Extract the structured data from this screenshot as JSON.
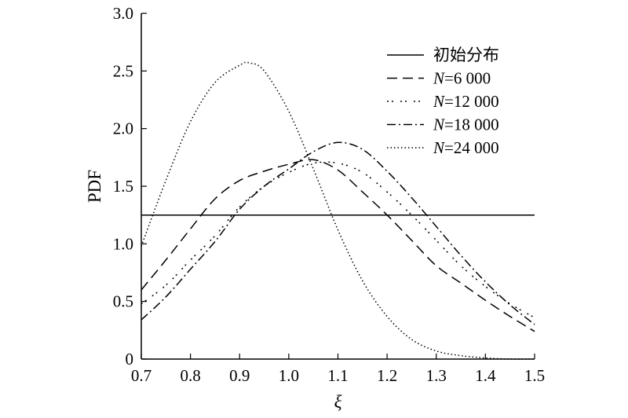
{
  "chart_data": {
    "type": "line",
    "title": "",
    "xlabel": "ξ",
    "ylabel": "PDF",
    "xlim": [
      0.7,
      1.5
    ],
    "ylim": [
      0,
      3.0
    ],
    "x_ticks": [
      "0.7",
      "0.8",
      "0.9",
      "1.0",
      "1.1",
      "1.2",
      "1.3",
      "1.4",
      "1.5"
    ],
    "y_ticks": [
      "0",
      "0.5",
      "1.0",
      "1.5",
      "2.0",
      "2.5",
      "3.0"
    ],
    "grid": false,
    "legend_position": "top-right",
    "series": [
      {
        "name": "初始分布",
        "legend_var": "",
        "legend_rest": "初始分布",
        "style": "solid",
        "color": "#000000",
        "points": [
          [
            0.7,
            1.25
          ],
          [
            1.5,
            1.25
          ]
        ]
      },
      {
        "name": "N=6 000",
        "legend_var": "N",
        "legend_rest": "=6 000",
        "style": "dash",
        "color": "#000000",
        "points": [
          [
            0.7,
            0.6
          ],
          [
            0.75,
            0.86
          ],
          [
            0.8,
            1.13
          ],
          [
            0.85,
            1.39
          ],
          [
            0.9,
            1.55
          ],
          [
            0.95,
            1.63
          ],
          [
            1.0,
            1.69
          ],
          [
            1.05,
            1.73
          ],
          [
            1.1,
            1.64
          ],
          [
            1.15,
            1.45
          ],
          [
            1.2,
            1.25
          ],
          [
            1.25,
            1.03
          ],
          [
            1.3,
            0.81
          ],
          [
            1.35,
            0.66
          ],
          [
            1.4,
            0.51
          ],
          [
            1.45,
            0.37
          ],
          [
            1.5,
            0.24
          ]
        ]
      },
      {
        "name": "N=12 000",
        "legend_var": "N",
        "legend_rest": "=12 000",
        "style": "dot-dot-gap",
        "color": "#000000",
        "points": [
          [
            0.7,
            0.48
          ],
          [
            0.75,
            0.64
          ],
          [
            0.8,
            0.86
          ],
          [
            0.85,
            1.07
          ],
          [
            0.9,
            1.32
          ],
          [
            0.95,
            1.5
          ],
          [
            1.0,
            1.62
          ],
          [
            1.05,
            1.7
          ],
          [
            1.1,
            1.7
          ],
          [
            1.15,
            1.62
          ],
          [
            1.2,
            1.45
          ],
          [
            1.25,
            1.25
          ],
          [
            1.3,
            1.03
          ],
          [
            1.35,
            0.81
          ],
          [
            1.4,
            0.63
          ],
          [
            1.45,
            0.48
          ],
          [
            1.5,
            0.36
          ]
        ]
      },
      {
        "name": "N=18 000",
        "legend_var": "N",
        "legend_rest": "=18 000",
        "style": "dash-dot",
        "color": "#000000",
        "points": [
          [
            0.7,
            0.34
          ],
          [
            0.75,
            0.54
          ],
          [
            0.8,
            0.78
          ],
          [
            0.85,
            1.02
          ],
          [
            0.9,
            1.3
          ],
          [
            0.95,
            1.5
          ],
          [
            1.0,
            1.65
          ],
          [
            1.05,
            1.8
          ],
          [
            1.1,
            1.88
          ],
          [
            1.15,
            1.82
          ],
          [
            1.2,
            1.63
          ],
          [
            1.25,
            1.4
          ],
          [
            1.3,
            1.15
          ],
          [
            1.35,
            0.9
          ],
          [
            1.4,
            0.67
          ],
          [
            1.45,
            0.47
          ],
          [
            1.5,
            0.3
          ]
        ]
      },
      {
        "name": "N=24 000",
        "legend_var": "N",
        "legend_rest": "=24 000",
        "style": "dotted",
        "color": "#000000",
        "points": [
          [
            0.7,
            0.98
          ],
          [
            0.75,
            1.55
          ],
          [
            0.8,
            2.06
          ],
          [
            0.85,
            2.4
          ],
          [
            0.9,
            2.55
          ],
          [
            0.92,
            2.57
          ],
          [
            0.95,
            2.5
          ],
          [
            1.0,
            2.15
          ],
          [
            1.05,
            1.65
          ],
          [
            1.1,
            1.12
          ],
          [
            1.15,
            0.68
          ],
          [
            1.2,
            0.37
          ],
          [
            1.25,
            0.17
          ],
          [
            1.3,
            0.07
          ],
          [
            1.35,
            0.03
          ],
          [
            1.4,
            0.01
          ],
          [
            1.45,
            0.0
          ],
          [
            1.5,
            0.0
          ]
        ]
      }
    ]
  }
}
